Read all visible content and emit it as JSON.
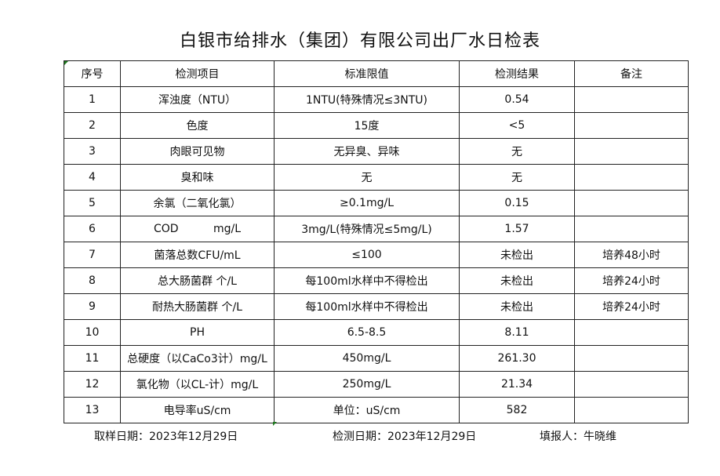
{
  "title": "白银市给排水（集团）有限公司出厂水日检表",
  "table": {
    "headers": [
      "序号",
      "检测项目",
      "标准限值",
      "检测结果",
      "备注"
    ],
    "rows": [
      [
        "1",
        "浑浊度（NTU）",
        "1NTU(特殊情况≤3NTU)",
        "0.54",
        ""
      ],
      [
        "2",
        "色度",
        "15度",
        "<5",
        ""
      ],
      [
        "3",
        "肉眼可见物",
        "无异臭、异味",
        "无",
        ""
      ],
      [
        "4",
        "臭和味",
        "无",
        "无",
        ""
      ],
      [
        "5",
        "余氯（二氧化氯）",
        "≥0.1mg/L",
        "0.15",
        ""
      ],
      [
        "6",
        "COD          mg/L",
        "3mg/L(特殊情况≤5mg/L)",
        "1.57",
        ""
      ],
      [
        "7",
        "菌落总数CFU/mL",
        "≤100",
        "未检出",
        "培养48小时"
      ],
      [
        "8",
        "总大肠菌群 个/L",
        "每100ml水样中不得检出",
        "未检出",
        "培养24小时"
      ],
      [
        "9",
        "耐热大肠菌群 个/L",
        "每100ml水样中不得检出",
        "未检出",
        "培养24小时"
      ],
      [
        "10",
        "PH",
        "6.5-8.5",
        "8.11",
        ""
      ],
      [
        "11",
        "总硬度（以CaCo3计）mg/L",
        "450mg/L",
        "261.30",
        ""
      ],
      [
        "12",
        "氯化物（以CL-计）mg/L",
        "250mg/L",
        "21.34",
        ""
      ],
      [
        "13",
        "电导率uS/cm",
        "单位：uS/cm",
        "582",
        ""
      ]
    ]
  },
  "footer": {
    "sampling_date": "取样日期：2023年12月29日",
    "test_date": "检测日期：2023年12月29日",
    "reporter": "填报人：牛晓维"
  }
}
